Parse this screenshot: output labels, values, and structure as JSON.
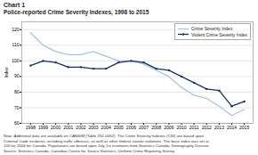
{
  "chart_data": {
    "type": "line",
    "title": "Chart 1",
    "subtitle": "Police-reported Crime Severity Indexes, 1998 to 2015",
    "ylabel": "Index",
    "x": [
      1998,
      1999,
      2000,
      2001,
      2002,
      2003,
      2004,
      2005,
      2006,
      2007,
      2008,
      2009,
      2010,
      2011,
      2012,
      2013,
      2014,
      2015
    ],
    "xlim": [
      1997.3,
      2015.7
    ],
    "xticks": [
      1998,
      1999,
      2000,
      2001,
      2002,
      2003,
      2004,
      2005,
      2006,
      2007,
      2008,
      2009,
      2010,
      2011,
      2012,
      2013,
      2014,
      2015
    ],
    "ylim": [
      60,
      125
    ],
    "yticks": [
      60,
      70,
      80,
      90,
      100,
      110,
      120
    ],
    "series": [
      {
        "name": "Crime Severity Index",
        "color": "#a8c4e0",
        "values": [
          118,
          110,
          106,
          104,
          104,
          106,
          103,
          100,
          100,
          98,
          94,
          90,
          83,
          78,
          76,
          71,
          65,
          69
        ]
      },
      {
        "name": "Violent Crime Severity Index",
        "color": "#1a2f5e",
        "marker": "dot",
        "values": [
          97,
          100,
          99,
          96,
          96,
          95,
          95,
          99,
          100,
          99,
          95,
          94,
          90,
          86,
          82,
          81,
          71,
          74
        ]
      }
    ],
    "grid": true,
    "legend": "upper right",
    "annotations": [
      "Note: Additional data are available on CANSIM (Table 252-0052). The Crime Severity Indexes (CSI) are based upon",
      "Criminal Code incidents, including traffic offences, as well as other federal statute violations. The base index was set at",
      "100 for 2006 for Canada. Populations are based upon July 1st estimates from Statistics Canada, Demography Division.",
      "Source: Statistics Canada, Canadian Centre for Justice Statistics, Uniform Crime Reporting Survey."
    ]
  }
}
